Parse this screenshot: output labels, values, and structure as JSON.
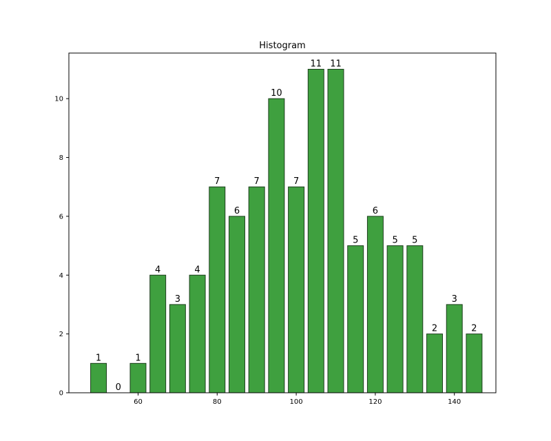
{
  "chart_data": {
    "type": "bar",
    "title": "Histogram",
    "xlabel": "",
    "ylabel": "",
    "bar_width": 4,
    "x": [
      50,
      55,
      60,
      65,
      70,
      75,
      80,
      85,
      90,
      95,
      100,
      105,
      110,
      115,
      120,
      125,
      130,
      135,
      140,
      145
    ],
    "values": [
      1,
      0,
      1,
      4,
      3,
      4,
      7,
      6,
      7,
      10,
      7,
      11,
      11,
      5,
      6,
      5,
      5,
      2,
      3,
      2
    ],
    "value_labels": [
      "1",
      "0",
      "1",
      "4",
      "3",
      "4",
      "7",
      "6",
      "7",
      "10",
      "7",
      "11",
      "11",
      "5",
      "6",
      "5",
      "5",
      "2",
      "3",
      "2"
    ],
    "xlim": [
      42.5,
      150.5
    ],
    "ylim": [
      0,
      11.55
    ],
    "xticks": [
      60,
      80,
      100,
      120,
      140
    ],
    "xtick_labels": [
      "60",
      "80",
      "100",
      "120",
      "140"
    ],
    "yticks": [
      0,
      2,
      4,
      6,
      8,
      10
    ],
    "ytick_labels": [
      "0",
      "2",
      "4",
      "6",
      "8",
      "10"
    ],
    "grid": false,
    "colors": {
      "bar_fill": "#3fa03f",
      "bar_edge": "#1b3d1b"
    }
  }
}
